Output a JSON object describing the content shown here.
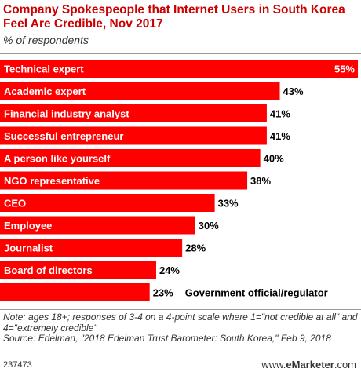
{
  "title": "Company Spokespeople that Internet Users in South Korea Feel Are Credible, Nov 2017",
  "subtitle": "% of respondents",
  "note": "Note: ages 18+; responses of 3-4 on a 4-point scale where 1=\"not credible at all\" and 4=\"extremely credible\"",
  "source": "Source: Edelman, \"2018 Edelman Trust Barometer: South Korea,\" Feb 9, 2018",
  "chart_id": "237473",
  "brand": {
    "prefix": "www.",
    "name": "eMarketer",
    "suffix": ".com"
  },
  "colors": {
    "bar": "#ff0000",
    "title": "#cc0000"
  },
  "chart_data": {
    "type": "bar",
    "orientation": "horizontal",
    "categories": [
      "Technical expert",
      "Academic expert",
      "Financial industry analyst",
      "Successful entrepreneur",
      "A person like yourself",
      "NGO representative",
      "CEO",
      "Employee",
      "Journalist",
      "Board of directors",
      "Government official/regulator"
    ],
    "values": [
      55,
      43,
      41,
      41,
      40,
      38,
      33,
      30,
      28,
      24,
      23
    ],
    "value_labels": [
      "55%",
      "43%",
      "41%",
      "41%",
      "40%",
      "38%",
      "33%",
      "30%",
      "28%",
      "24%",
      "23%"
    ],
    "unit": "%"
  }
}
